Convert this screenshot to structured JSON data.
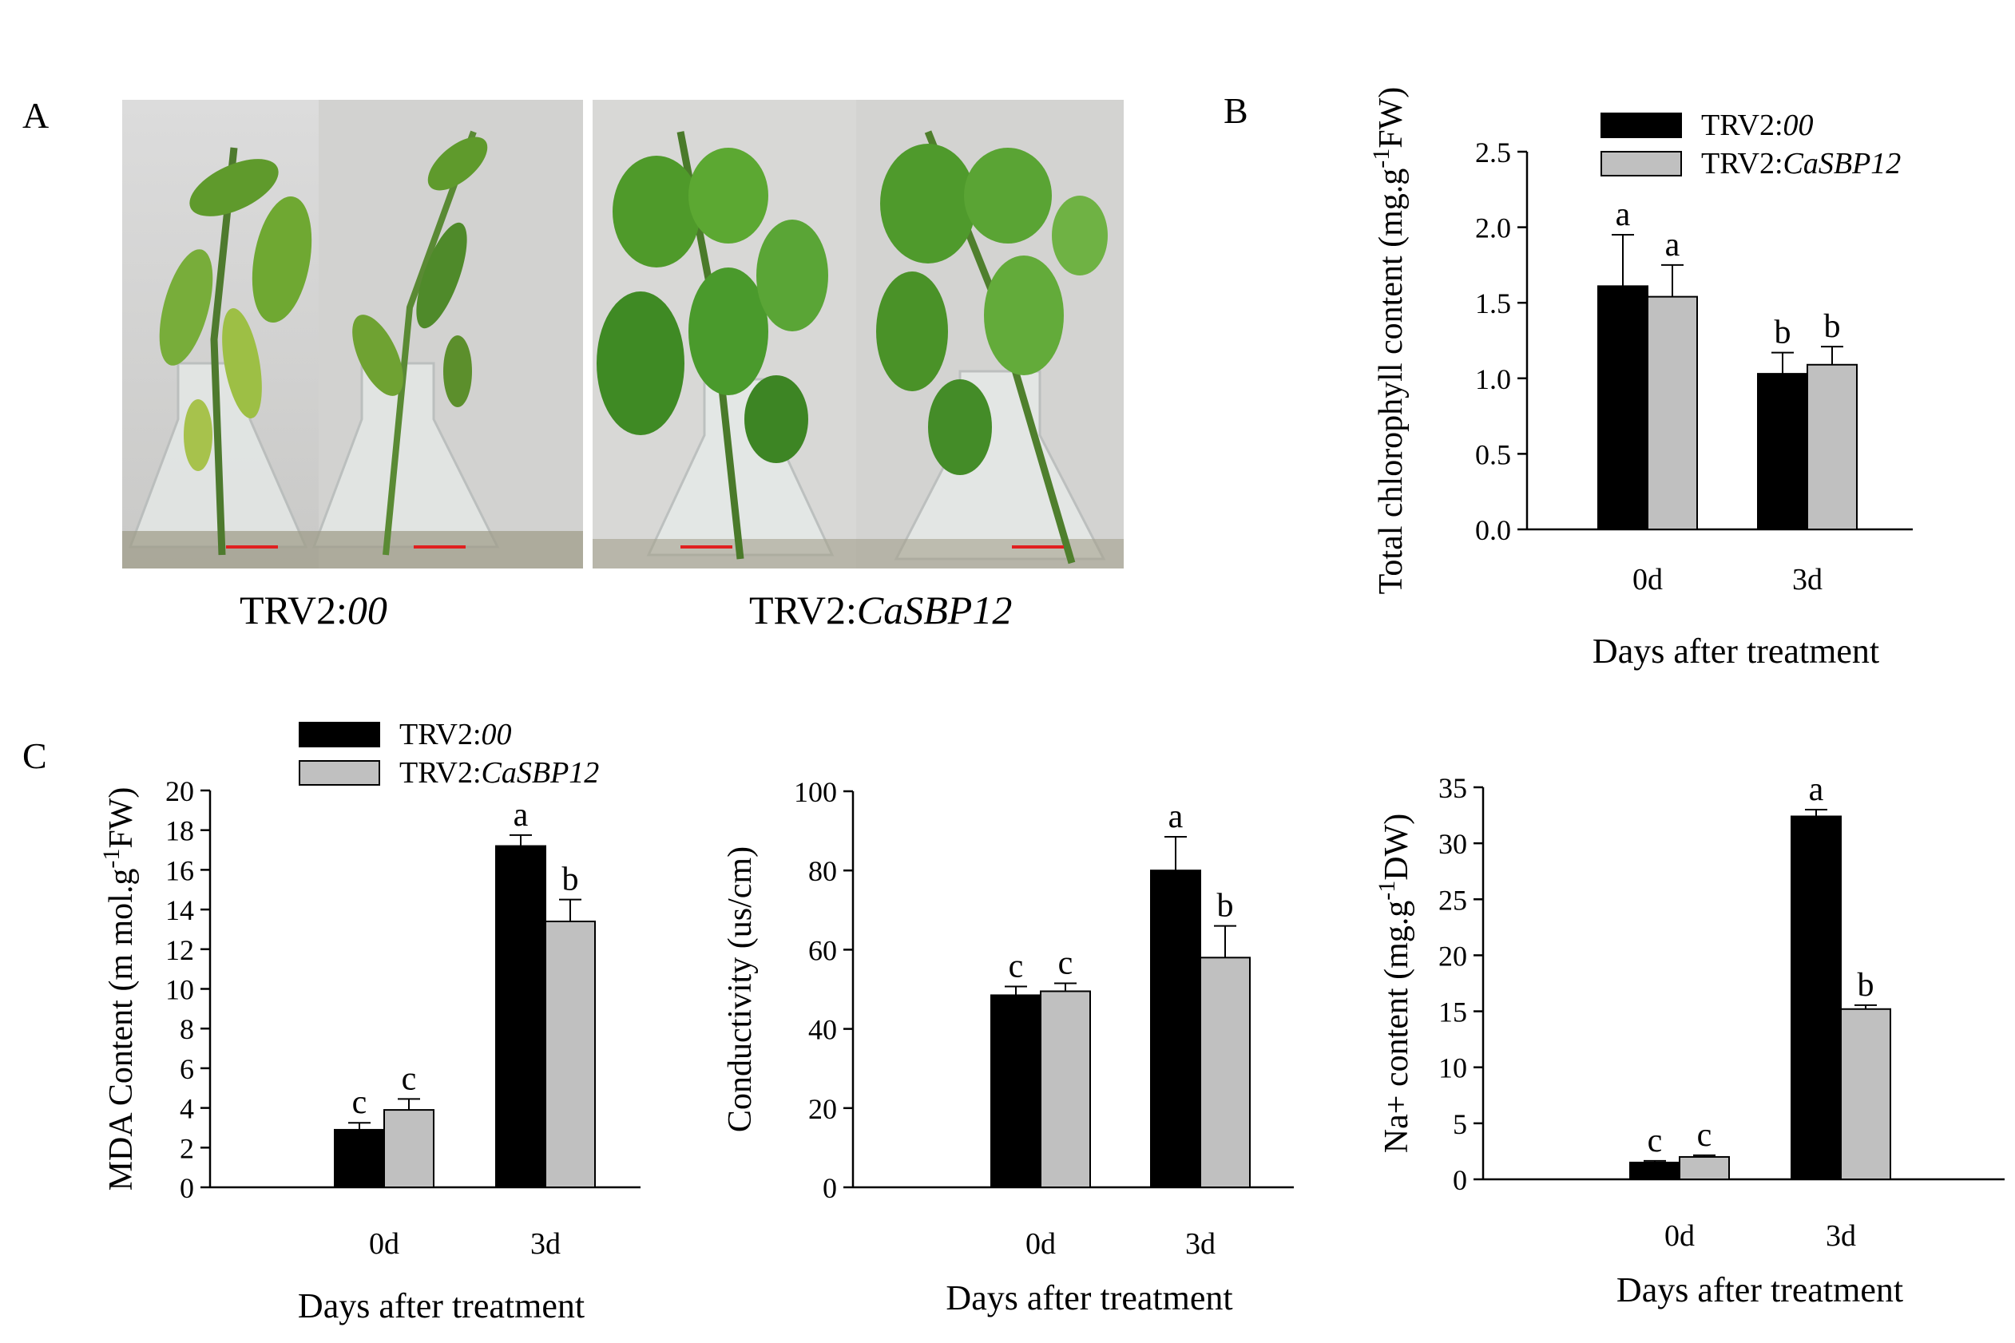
{
  "panels": {
    "a": "A",
    "b": "B",
    "c": "C"
  },
  "photo_captions": [
    {
      "prefix": "TRV2:",
      "italic": "00"
    },
    {
      "prefix": "TRV2:",
      "italic": "CaSBP12"
    }
  ],
  "legend": [
    {
      "prefix": "TRV2:",
      "italic": "00",
      "color": "#000000"
    },
    {
      "prefix": "TRV2:",
      "italic": "CaSBP12",
      "color": "#c0c0c0"
    }
  ],
  "chart_data": [
    {
      "id": "chlorophyll",
      "type": "bar",
      "categories": [
        "0d",
        "3d"
      ],
      "series": [
        {
          "name": "TRV2:00",
          "values": [
            1.61,
            1.03
          ],
          "errors": [
            0.34,
            0.14
          ],
          "letters": [
            "a",
            "b"
          ],
          "color": "#000000"
        },
        {
          "name": "TRV2:CaSBP12",
          "values": [
            1.54,
            1.09
          ],
          "errors": [
            0.21,
            0.12
          ],
          "letters": [
            "a",
            "b"
          ],
          "color": "#c0c0c0"
        }
      ],
      "xlabel": "Days after treatment",
      "ylabel": "Total chlorophyll content (mg.g",
      "ylabel_sup": "-1",
      "ylabel_tail": "FW)",
      "ylim": [
        0,
        2.5
      ],
      "yticks": [
        "0.0",
        "0.5",
        "1.0",
        "1.5",
        "2.0",
        "2.5"
      ]
    },
    {
      "id": "mda",
      "type": "bar",
      "categories": [
        "0d",
        "3d"
      ],
      "series": [
        {
          "name": "TRV2:00",
          "values": [
            2.9,
            17.2
          ],
          "errors": [
            0.35,
            0.55
          ],
          "letters": [
            "c",
            "a"
          ],
          "color": "#000000"
        },
        {
          "name": "TRV2:CaSBP12",
          "values": [
            3.9,
            13.4
          ],
          "errors": [
            0.55,
            1.1
          ],
          "letters": [
            "c",
            "b"
          ],
          "color": "#c0c0c0"
        }
      ],
      "xlabel": "Days after treatment",
      "ylabel": "MDA Content (m mol.g",
      "ylabel_sup": "-1",
      "ylabel_tail": "FW)",
      "ylim": [
        0,
        20
      ],
      "yticks": [
        "0",
        "2",
        "4",
        "6",
        "8",
        "10",
        "12",
        "14",
        "16",
        "18",
        "20"
      ]
    },
    {
      "id": "conductivity",
      "type": "bar",
      "categories": [
        "0d",
        "3d"
      ],
      "series": [
        {
          "name": "TRV2:00",
          "values": [
            48.5,
            80
          ],
          "errors": [
            2.2,
            8.5
          ],
          "letters": [
            "c",
            "a"
          ],
          "color": "#000000"
        },
        {
          "name": "TRV2:CaSBP12",
          "values": [
            49.5,
            58
          ],
          "errors": [
            2.0,
            8.0
          ],
          "letters": [
            "c",
            "b"
          ],
          "color": "#c0c0c0"
        }
      ],
      "xlabel": "Days after treatment",
      "ylabel": "Conductivity (us/cm)",
      "ylabel_sup": "",
      "ylabel_tail": "",
      "ylim": [
        0,
        100
      ],
      "yticks": [
        "0",
        "20",
        "40",
        "60",
        "80",
        "100"
      ]
    },
    {
      "id": "sodium",
      "type": "bar",
      "categories": [
        "0d",
        "3d"
      ],
      "series": [
        {
          "name": "TRV2:00",
          "values": [
            1.5,
            32.4
          ],
          "errors": [
            0.15,
            0.6
          ],
          "letters": [
            "c",
            "a"
          ],
          "color": "#000000"
        },
        {
          "name": "TRV2:CaSBP12",
          "values": [
            2.0,
            15.2
          ],
          "errors": [
            0.15,
            0.35
          ],
          "letters": [
            "c",
            "b"
          ],
          "color": "#c0c0c0"
        }
      ],
      "xlabel": "Days after treatment",
      "ylabel": "Na+ content (mg.g",
      "ylabel_sup": "-1",
      "ylabel_tail": "DW)",
      "ylim": [
        0,
        35
      ],
      "yticks": [
        "0",
        "5",
        "10",
        "15",
        "20",
        "25",
        "30",
        "35"
      ]
    }
  ]
}
